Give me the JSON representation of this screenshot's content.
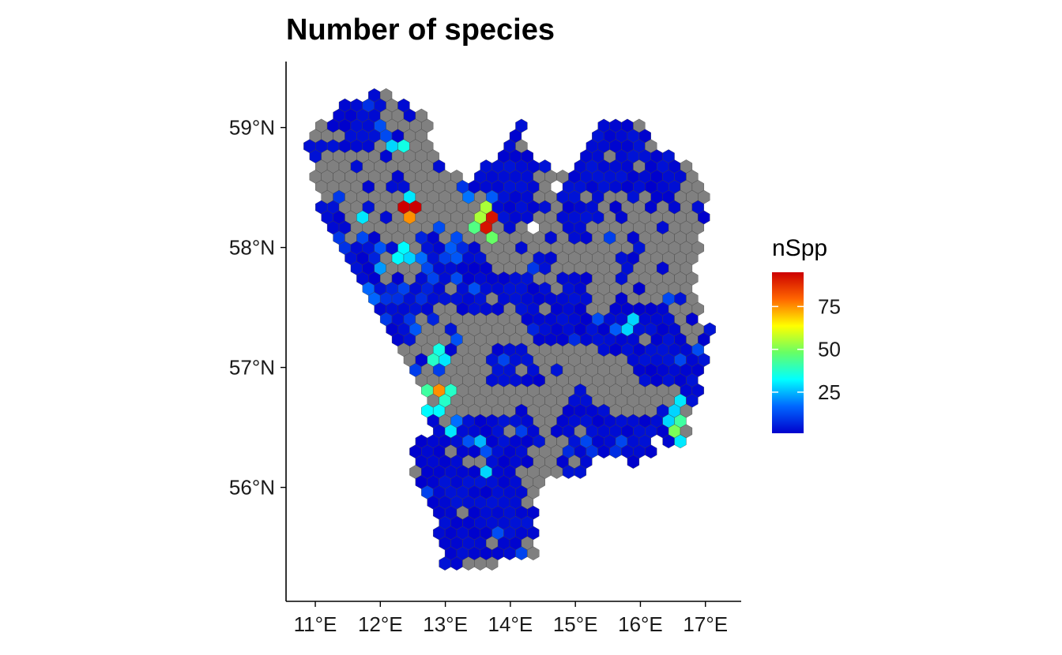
{
  "chart_data": {
    "type": "heatmap",
    "subtype": "hexbin-map",
    "title": "Number of species",
    "xlabel": "",
    "ylabel": "",
    "x_ticks": [
      {
        "value": 11,
        "label": "11°E"
      },
      {
        "value": 12,
        "label": "12°E"
      },
      {
        "value": 13,
        "label": "13°E"
      },
      {
        "value": 14,
        "label": "14°E"
      },
      {
        "value": 15,
        "label": "15°E"
      },
      {
        "value": 16,
        "label": "16°E"
      },
      {
        "value": 17,
        "label": "17°E"
      }
    ],
    "y_ticks": [
      {
        "value": 56,
        "label": "56°N"
      },
      {
        "value": 57,
        "label": "57°N"
      },
      {
        "value": 58,
        "label": "58°N"
      },
      {
        "value": 59,
        "label": "59°N"
      }
    ],
    "xlim": [
      10.55,
      17.55
    ],
    "ylim": [
      55.05,
      59.55
    ],
    "grid": false,
    "no_data_color": "#808080",
    "legend": {
      "title": "nSpp",
      "position": "right",
      "range": [
        1,
        95
      ],
      "ticks": [
        {
          "value": 25,
          "label": "25"
        },
        {
          "value": 50,
          "label": "50"
        },
        {
          "value": 75,
          "label": "75"
        }
      ],
      "colors": [
        "#0000CD",
        "#0066FF",
        "#00FFFF",
        "#66FF66",
        "#FFFF00",
        "#FF6600",
        "#CC0000"
      ]
    },
    "region_outline": [
      [
        11.0,
        59.0
      ],
      [
        11.6,
        59.25
      ],
      [
        12.15,
        59.3
      ],
      [
        12.7,
        59.1
      ],
      [
        12.9,
        58.75
      ],
      [
        13.3,
        58.55
      ],
      [
        13.8,
        58.8
      ],
      [
        14.15,
        59.1
      ],
      [
        14.35,
        58.75
      ],
      [
        14.8,
        58.6
      ],
      [
        15.1,
        58.75
      ],
      [
        15.4,
        59.05
      ],
      [
        15.95,
        59.05
      ],
      [
        16.4,
        58.8
      ],
      [
        16.95,
        58.6
      ],
      [
        17.05,
        58.25
      ],
      [
        16.85,
        57.9
      ],
      [
        16.9,
        57.4
      ],
      [
        17.15,
        57.35
      ],
      [
        16.95,
        57.0
      ],
      [
        16.85,
        56.7
      ],
      [
        16.65,
        56.35
      ],
      [
        16.2,
        56.3
      ],
      [
        15.9,
        56.2
      ],
      [
        15.4,
        56.25
      ],
      [
        14.95,
        56.05
      ],
      [
        14.45,
        56.05
      ],
      [
        14.35,
        55.75
      ],
      [
        14.4,
        55.45
      ],
      [
        13.65,
        55.35
      ],
      [
        13.0,
        55.33
      ],
      [
        12.85,
        55.6
      ],
      [
        12.75,
        55.9
      ],
      [
        12.5,
        56.05
      ],
      [
        12.45,
        56.35
      ],
      [
        12.8,
        56.5
      ],
      [
        12.6,
        56.85
      ],
      [
        12.3,
        57.05
      ],
      [
        12.05,
        57.4
      ],
      [
        11.75,
        57.65
      ],
      [
        11.45,
        57.95
      ],
      [
        11.15,
        58.15
      ],
      [
        10.95,
        58.55
      ],
      [
        10.9,
        58.85
      ]
    ],
    "holes": [
      {
        "lon": 14.35,
        "lat": 58.2,
        "r": 0.11
      },
      {
        "lon": 14.7,
        "lat": 58.52,
        "r": 0.1
      },
      {
        "lon": 12.45,
        "lat": 56.35,
        "r": 0.1
      },
      {
        "lon": 16.2,
        "lat": 56.35,
        "r": 0.1
      }
    ],
    "hotspots": [
      {
        "lon": 12.45,
        "lat": 58.35,
        "value": 95
      },
      {
        "lon": 12.4,
        "lat": 58.28,
        "value": 75
      },
      {
        "lon": 12.42,
        "lat": 58.45,
        "value": 30
      },
      {
        "lon": 12.15,
        "lat": 58.82,
        "value": 28
      },
      {
        "lon": 12.28,
        "lat": 58.82,
        "value": 35
      },
      {
        "lon": 13.7,
        "lat": 58.2,
        "value": 92
      },
      {
        "lon": 13.6,
        "lat": 58.28,
        "value": 55
      },
      {
        "lon": 13.58,
        "lat": 58.15,
        "value": 62
      },
      {
        "lon": 13.52,
        "lat": 58.2,
        "value": 45
      },
      {
        "lon": 13.65,
        "lat": 58.08,
        "value": 48
      },
      {
        "lon": 13.4,
        "lat": 58.4,
        "value": 18
      },
      {
        "lon": 13.75,
        "lat": 58.45,
        "value": 15
      },
      {
        "lon": 11.7,
        "lat": 58.25,
        "value": 30
      },
      {
        "lon": 12.3,
        "lat": 57.95,
        "value": 32
      },
      {
        "lon": 12.4,
        "lat": 57.95,
        "value": 28
      },
      {
        "lon": 12.0,
        "lat": 57.8,
        "value": 22
      },
      {
        "lon": 12.9,
        "lat": 56.85,
        "value": 75
      },
      {
        "lon": 12.8,
        "lat": 56.8,
        "value": 42
      },
      {
        "lon": 13.0,
        "lat": 56.78,
        "value": 38
      },
      {
        "lon": 12.75,
        "lat": 57.05,
        "value": 38
      },
      {
        "lon": 12.85,
        "lat": 57.1,
        "value": 35
      },
      {
        "lon": 12.95,
        "lat": 57.08,
        "value": 30
      },
      {
        "lon": 12.8,
        "lat": 56.65,
        "value": 32
      },
      {
        "lon": 12.95,
        "lat": 56.65,
        "value": 28
      },
      {
        "lon": 13.05,
        "lat": 56.45,
        "value": 30
      },
      {
        "lon": 13.55,
        "lat": 56.35,
        "value": 25
      },
      {
        "lon": 13.65,
        "lat": 56.12,
        "value": 28
      },
      {
        "lon": 16.3,
        "lat": 58.85,
        "value": 40
      },
      {
        "lon": 16.5,
        "lat": 56.6,
        "value": 28
      },
      {
        "lon": 16.45,
        "lat": 56.45,
        "value": 50
      },
      {
        "lon": 16.55,
        "lat": 56.52,
        "value": 42
      },
      {
        "lon": 16.55,
        "lat": 56.35,
        "value": 30
      },
      {
        "lon": 16.6,
        "lat": 56.7,
        "value": 30
      },
      {
        "lon": 15.85,
        "lat": 57.35,
        "value": 28
      },
      {
        "lon": 15.6,
        "lat": 57.3,
        "value": 15
      }
    ]
  }
}
